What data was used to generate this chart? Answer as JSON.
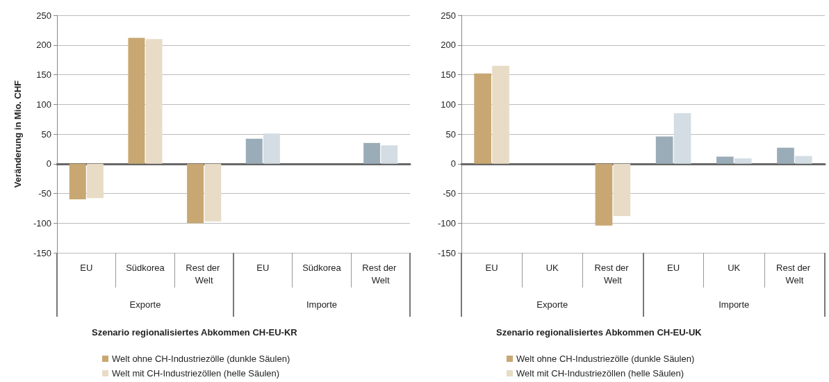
{
  "chart_data": [
    {
      "type": "bar",
      "ylabel": "Veränderung in Mio. CHF",
      "xlabel": "Szenario regionalisiertes Abkommen CH-EU-KR",
      "categories": [
        "EU",
        "Südkorea",
        "Rest der Welt",
        "EU",
        "Südkorea",
        "Rest der Welt"
      ],
      "annotations": [
        "Exporte",
        "Importe"
      ],
      "ylim": [
        -150,
        250
      ],
      "yticks": [
        -150,
        -100,
        -50,
        0,
        50,
        100,
        150,
        200,
        250
      ],
      "grid": "y",
      "legend": "bottom left",
      "series": [
        {
          "name": "Welt ohne CH-Industriezölle (dunkle Säulen)",
          "color": "#c8a772",
          "colors": [
            "#c8a772",
            "#c8a772",
            "#c8a772",
            "#9aacb8",
            "#9aacb8",
            "#9aacb8"
          ],
          "values": [
            -60,
            212,
            -100,
            42,
            0,
            35
          ]
        },
        {
          "name": "Welt mit CH-Industriezöllen (helle Säulen)",
          "color": "#e8dcc6",
          "colors": [
            "#e8dcc6",
            "#e8dcc6",
            "#e8dcc6",
            "#d3dde3",
            "#d3dde3",
            "#d3dde3"
          ],
          "values": [
            -58,
            210,
            -97,
            51,
            0,
            31
          ]
        }
      ]
    },
    {
      "type": "bar",
      "xlabel": "Szenario regionalisiertes Abkommen CH-EU-UK",
      "categories": [
        "EU",
        "UK",
        "Rest der Welt",
        "EU",
        "UK",
        "Rest der Welt"
      ],
      "annotations": [
        "Exporte",
        "Importe"
      ],
      "ylim": [
        -150,
        250
      ],
      "yticks": [
        -150,
        -100,
        -50,
        0,
        50,
        100,
        150,
        200,
        250
      ],
      "grid": "y",
      "legend": "bottom left",
      "series": [
        {
          "name": "Welt ohne CH-Industriezölle (dunkle Säulen)",
          "color": "#c8a772",
          "colors": [
            "#c8a772",
            "#c8a772",
            "#c8a772",
            "#9aacb8",
            "#9aacb8",
            "#9aacb8"
          ],
          "values": [
            152,
            0,
            -104,
            46,
            12,
            27
          ]
        },
        {
          "name": "Welt mit CH-Industriezöllen (helle Säulen)",
          "color": "#e8dcc6",
          "colors": [
            "#e8dcc6",
            "#e8dcc6",
            "#e8dcc6",
            "#d3dde3",
            "#d3dde3",
            "#d3dde3"
          ],
          "values": [
            165,
            0,
            -88,
            85,
            9,
            13
          ]
        }
      ]
    }
  ]
}
